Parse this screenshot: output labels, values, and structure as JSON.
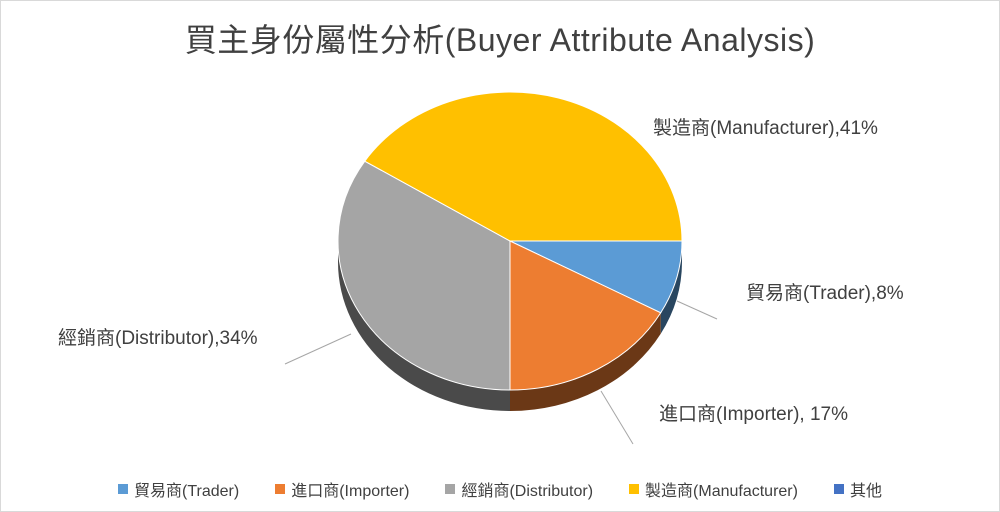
{
  "chart_data": {
    "type": "pie",
    "title": "買主身份屬性分析(Buyer Attribute Analysis)",
    "style": "3d",
    "legend_position": "bottom",
    "slices": [
      {
        "label": "貿易商(Trader)",
        "value": 8,
        "data_label": "貿易商(Trader),8%",
        "color": "#5b9bd5"
      },
      {
        "label": "進口商(Importer)",
        "value": 17,
        "data_label": "進口商(Importer), 17%",
        "color": "#ed7d31"
      },
      {
        "label": "經銷商(Distributor)",
        "value": 34,
        "data_label": "經銷商(Distributor),34%",
        "color": "#a5a5a5"
      },
      {
        "label": "製造商(Manufacturer)",
        "value": 41,
        "data_label": "製造商(Manufacturer),41%",
        "color": "#ffc000"
      }
    ],
    "legend": [
      {
        "label": "貿易商(Trader)",
        "color": "#5b9bd5"
      },
      {
        "label": "進口商(Importer)",
        "color": "#ed7d31"
      },
      {
        "label": "經銷商(Distributor)",
        "color": "#a5a5a5"
      },
      {
        "label": "製造商(Manufacturer)",
        "color": "#ffc000"
      },
      {
        "label": "其他",
        "color": "#4472c4"
      }
    ]
  }
}
